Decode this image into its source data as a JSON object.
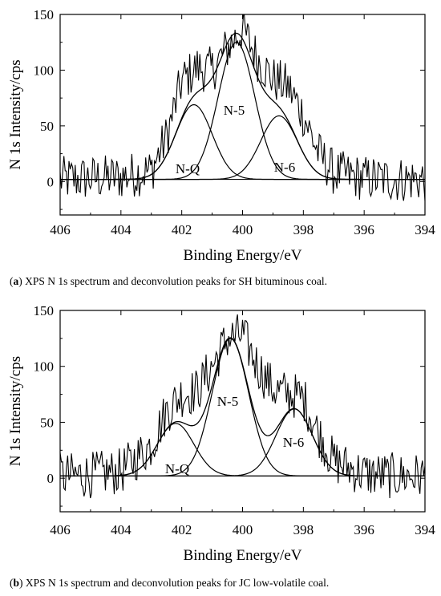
{
  "chart_data": [
    {
      "type": "line",
      "panel_letter": "a",
      "caption": "XPS N 1s spectrum and deconvolution peaks for SH bituminous coal.",
      "xlabel": "Binding Energy/eV",
      "ylabel": "N 1s Intensity/cps",
      "xlim": [
        406,
        394
      ],
      "ylim": [
        -30,
        150
      ],
      "x_ticks": [
        406,
        404,
        402,
        400,
        398,
        396,
        394
      ],
      "y_ticks": [
        0,
        50,
        100,
        150
      ],
      "raw_spectrum_envelope": {
        "x": [
          406.0,
          405.0,
          404.0,
          403.0,
          402.5,
          402.0,
          401.5,
          401.0,
          400.5,
          400.0,
          399.5,
          399.0,
          398.5,
          398.0,
          397.5,
          397.0,
          396.0,
          395.0,
          394.0
        ],
        "y": [
          2,
          3,
          4,
          10,
          40,
          90,
          102,
          100,
          120,
          137,
          110,
          92,
          85,
          60,
          25,
          8,
          3,
          2,
          2
        ]
      },
      "peaks": [
        {
          "name": "N-Q",
          "center": 401.6,
          "height": 67
        },
        {
          "name": "N-5",
          "center": 400.2,
          "height": 123
        },
        {
          "name": "N-6",
          "center": 398.8,
          "height": 57
        }
      ],
      "baseline_value": 2,
      "annotations": [
        "N-Q",
        "N-5",
        "N-6"
      ]
    },
    {
      "type": "line",
      "panel_letter": "b",
      "caption": "XPS N 1s spectrum and deconvolution peaks for JC low-volatile coal.",
      "xlabel": "Binding Energy/eV",
      "ylabel": "N 1s Intensity/cps",
      "xlim": [
        406,
        394
      ],
      "ylim": [
        -30,
        150
      ],
      "x_ticks": [
        406,
        404,
        402,
        400,
        398,
        396,
        394
      ],
      "y_ticks": [
        0,
        50,
        100,
        150
      ],
      "raw_spectrum_envelope": {
        "x": [
          406.0,
          405.0,
          404.0,
          403.0,
          402.5,
          402.0,
          401.5,
          401.0,
          400.5,
          400.0,
          399.5,
          399.0,
          398.5,
          398.0,
          397.5,
          397.0,
          396.0,
          395.0,
          394.0
        ],
        "y": [
          2,
          3,
          6,
          30,
          60,
          75,
          78,
          100,
          125,
          128,
          100,
          80,
          75,
          72,
          40,
          15,
          4,
          2,
          2
        ]
      },
      "peaks": [
        {
          "name": "N-Q",
          "center": 402.2,
          "height": 47
        },
        {
          "name": "N-5",
          "center": 400.4,
          "height": 123
        },
        {
          "name": "N-6",
          "center": 398.3,
          "height": 60
        }
      ],
      "baseline_value": 2,
      "annotations": [
        "N-Q",
        "N-5",
        "N-6"
      ]
    }
  ]
}
